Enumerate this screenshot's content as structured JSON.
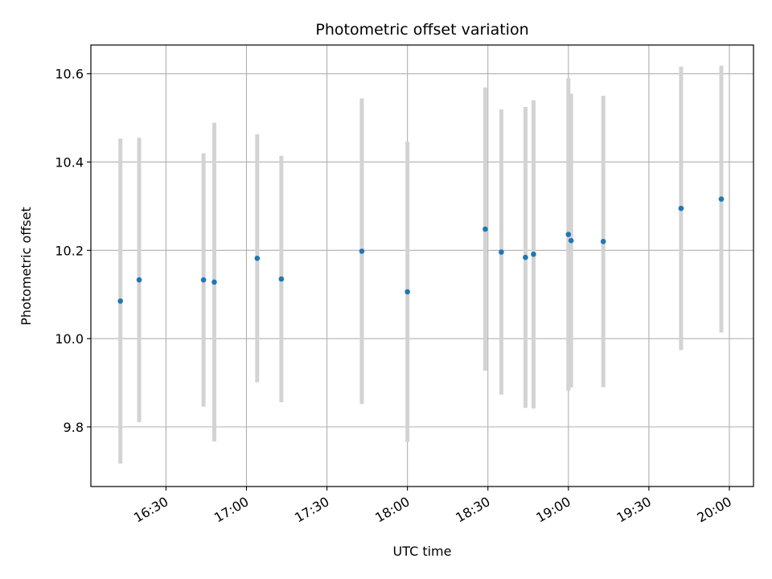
{
  "chart_data": {
    "type": "scatter",
    "title": "Photometric offset variation",
    "xlabel": "UTC time",
    "ylabel": "Photometric offset",
    "x_unit": "time-of-day",
    "xlim": [
      "16:02",
      "20:09"
    ],
    "ylim": [
      9.665,
      10.665
    ],
    "x_ticks": [
      "16:30",
      "17:00",
      "17:30",
      "18:00",
      "18:30",
      "19:00",
      "19:30",
      "20:00"
    ],
    "y_ticks": [
      9.8,
      10.0,
      10.2,
      10.4,
      10.6
    ],
    "y_tick_labels": [
      "9.8",
      "10.0",
      "10.2",
      "10.4",
      "10.6"
    ],
    "grid": true,
    "errorbar_color": "#d3d3d3",
    "point_color": "#1f77b4",
    "points": [
      {
        "x": "16:13",
        "y": 10.085,
        "err": 0.368
      },
      {
        "x": "16:20",
        "y": 10.133,
        "err": 0.322
      },
      {
        "x": "16:44",
        "y": 10.133,
        "err": 0.287
      },
      {
        "x": "16:48",
        "y": 10.128,
        "err": 0.361
      },
      {
        "x": "17:04",
        "y": 10.182,
        "err": 0.281
      },
      {
        "x": "17:13",
        "y": 10.135,
        "err": 0.279
      },
      {
        "x": "17:43",
        "y": 10.198,
        "err": 0.346
      },
      {
        "x": "18:00",
        "y": 10.106,
        "err": 0.34
      },
      {
        "x": "18:29",
        "y": 10.248,
        "err": 0.321
      },
      {
        "x": "18:35",
        "y": 10.196,
        "err": 0.323
      },
      {
        "x": "18:44",
        "y": 10.184,
        "err": 0.341
      },
      {
        "x": "18:47",
        "y": 10.191,
        "err": 0.349
      },
      {
        "x": "19:00",
        "y": 10.236,
        "err": 0.354
      },
      {
        "x": "19:01",
        "y": 10.222,
        "err": 0.333
      },
      {
        "x": "19:13",
        "y": 10.22,
        "err": 0.33
      },
      {
        "x": "19:42",
        "y": 10.295,
        "err": 0.321
      },
      {
        "x": "19:57",
        "y": 10.316,
        "err": 0.302
      }
    ]
  }
}
